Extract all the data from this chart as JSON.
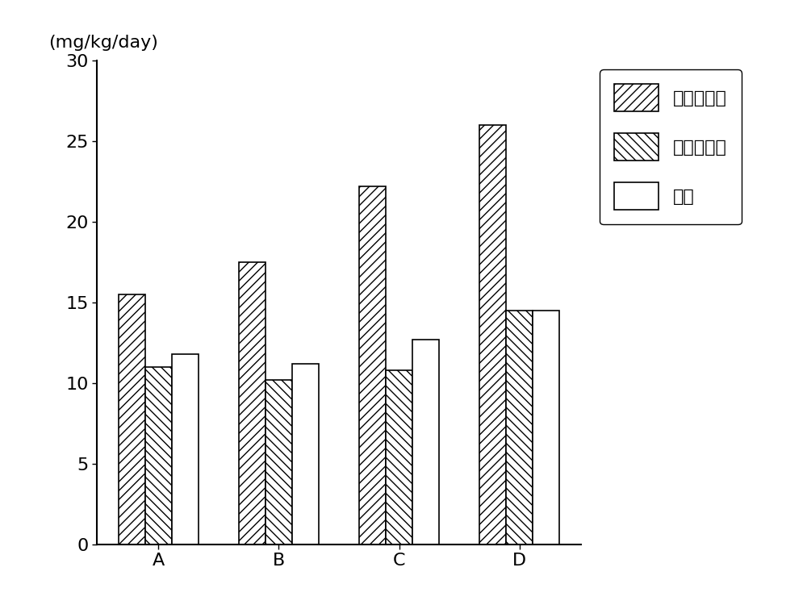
{
  "categories": [
    "A",
    "B",
    "C",
    "D"
  ],
  "series": {
    "easy": [
      15.5,
      17.5,
      22.2,
      26.0
    ],
    "resistant": [
      11.0,
      10.2,
      10.8,
      14.5
    ],
    "original": [
      11.8,
      11.2,
      12.7,
      14.5
    ]
  },
  "legend_labels": [
    "易分解组分",
    "耐分解组分",
    "原土"
  ],
  "ylabel_text": "(mg/kg/day)",
  "ylim": [
    0,
    30
  ],
  "yticks": [
    0,
    5,
    10,
    15,
    20,
    25,
    30
  ],
  "bar_width": 0.22,
  "background_color": "#ffffff",
  "hatch_easy": "///",
  "hatch_resistant": "\\\\\\",
  "hatch_original": "",
  "edge_color": "#000000",
  "bar_face_color": "#ffffff",
  "tick_fontsize": 16,
  "label_fontsize": 16,
  "legend_fontsize": 16
}
